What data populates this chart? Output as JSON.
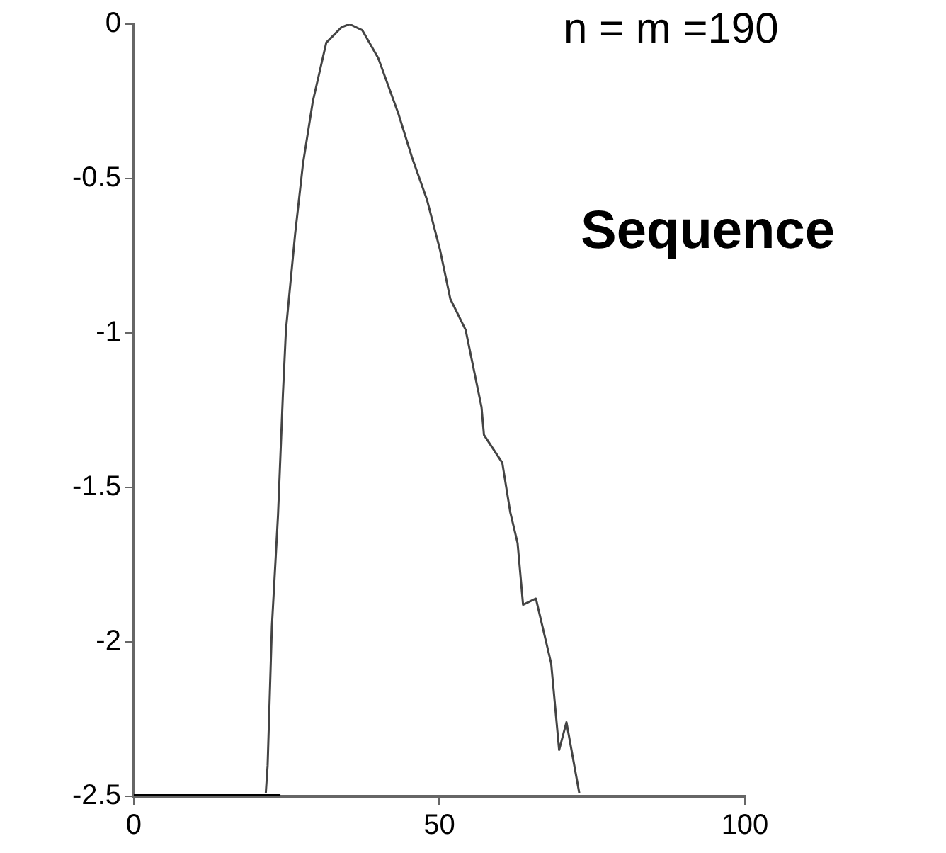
{
  "chart_data": {
    "type": "line",
    "annotations": [
      "n = m =190",
      "Sequence"
    ],
    "xlim": [
      0,
      100
    ],
    "xticks": [
      0,
      50,
      100
    ],
    "ylim": [
      -2.5,
      0
    ],
    "yticks": [
      0,
      -0.5,
      -1,
      -1.5,
      -2,
      -2.5
    ],
    "grid": false,
    "legend": false,
    "marker": "none",
    "line_style": "solid",
    "series": [
      {
        "color": "#444444",
        "x": [
          21.6,
          21.9,
          22.6,
          23.6,
          24.4,
          24.9,
          26.4,
          27.7,
          29.3,
          31.5,
          34.0,
          35.3,
          37.4,
          40.0,
          43.3,
          45.5,
          48.0,
          50.1,
          51.8,
          54.3,
          56.9,
          57.3,
          60.3,
          61.6,
          62.8,
          63.7,
          65.8,
          68.3,
          69.6,
          70.8,
          72.9
        ],
        "values": [
          -2.49,
          -2.4,
          -1.95,
          -1.59,
          -1.2,
          -0.99,
          -0.68,
          -0.45,
          -0.25,
          -0.06,
          -0.01,
          0,
          -0.02,
          -0.11,
          -0.29,
          -0.43,
          -0.57,
          -0.73,
          -0.89,
          -0.99,
          -1.24,
          -1.33,
          -1.42,
          -1.58,
          -1.68,
          -1.88,
          -1.86,
          -2.07,
          -2.35,
          -2.26,
          -2.49
        ]
      },
      {
        "color": "#000000",
        "x": [
          0,
          24
        ],
        "values": [
          -2.5,
          -2.5
        ]
      }
    ]
  }
}
